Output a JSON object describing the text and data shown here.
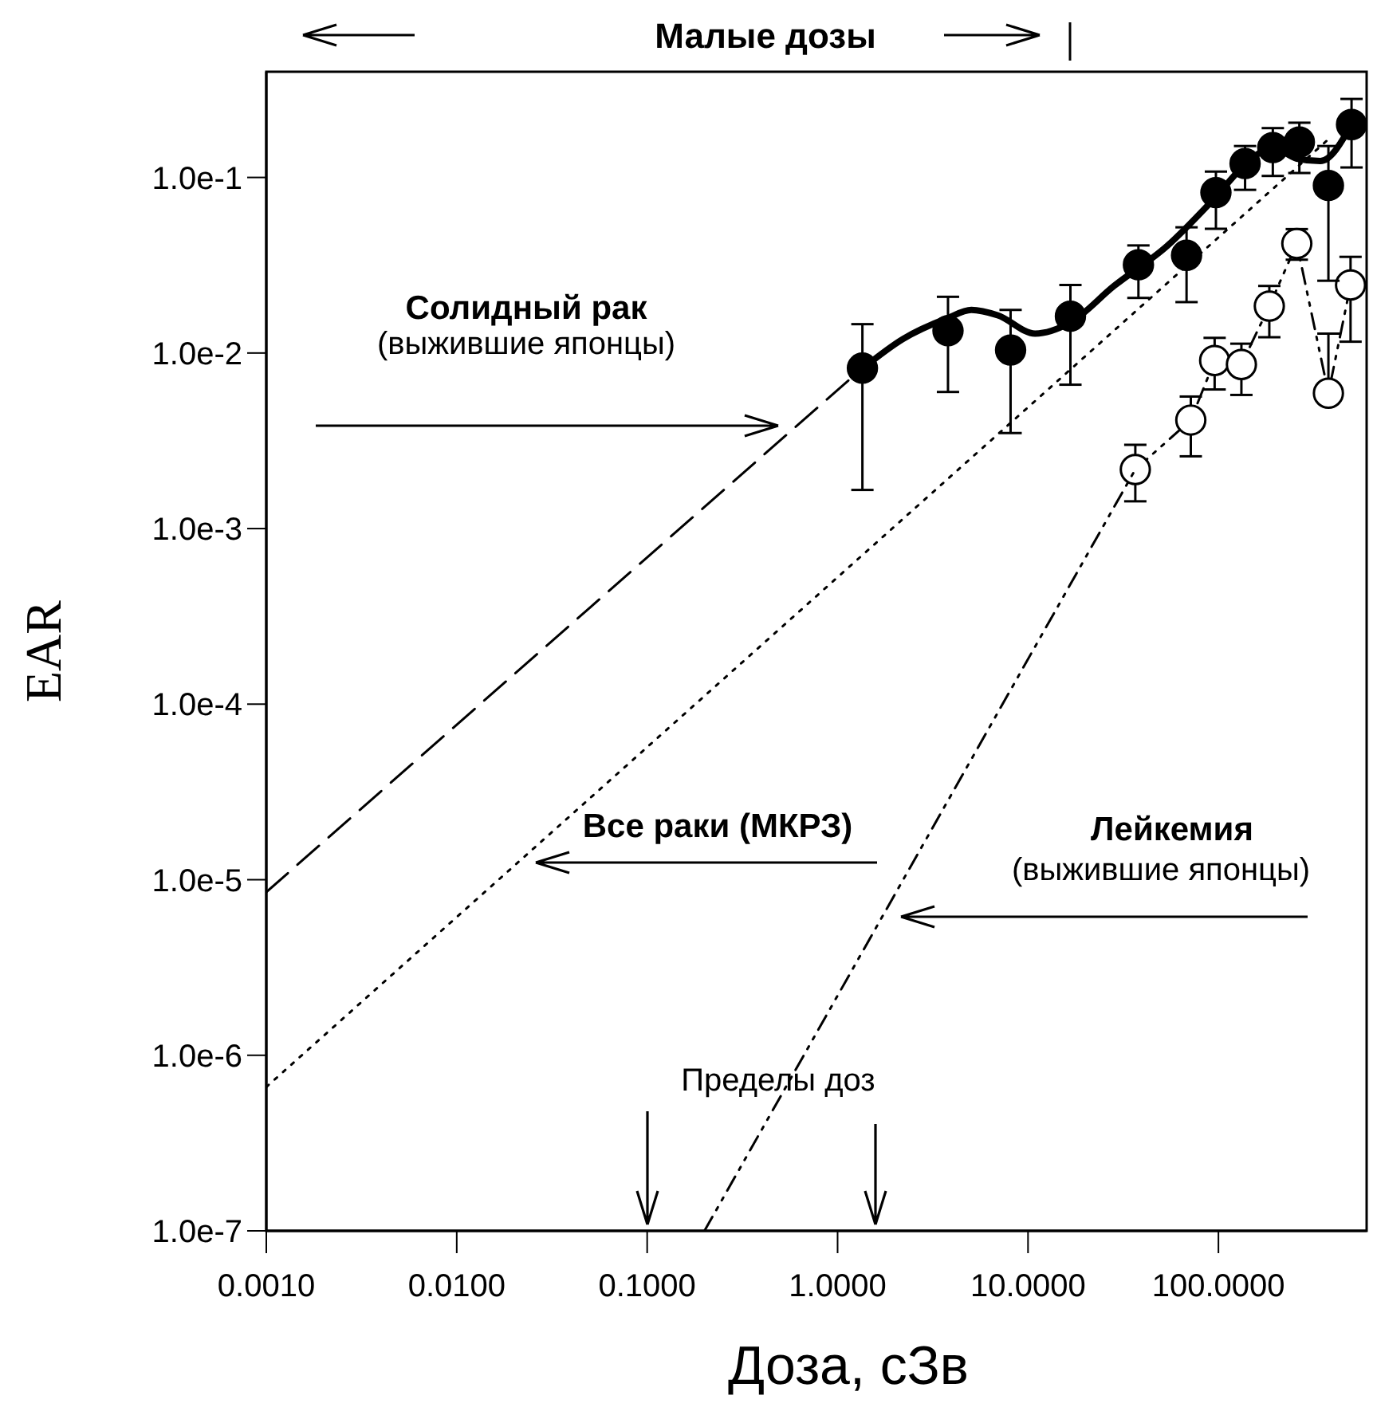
{
  "chart_data": {
    "type": "scatter",
    "xlabel": "Доза, сЗв",
    "ylabel": "EAR",
    "log": "xy",
    "grid": false,
    "xlim": [
      0.001,
      600
    ],
    "ylim": [
      1e-07,
      0.4
    ],
    "xticks": [
      {
        "value": 0.001,
        "label": "0.0010"
      },
      {
        "value": 0.01,
        "label": "0.0100"
      },
      {
        "value": 0.1,
        "label": "0.1000"
      },
      {
        "value": 1,
        "label": "1.0000"
      },
      {
        "value": 10,
        "label": "10.0000"
      },
      {
        "value": 100,
        "label": "100.0000"
      }
    ],
    "yticks": [
      {
        "value": 1e-07,
        "label": "1.0e-7"
      },
      {
        "value": 1e-06,
        "label": "1.0e-6"
      },
      {
        "value": 1e-05,
        "label": "1.0e-5"
      },
      {
        "value": 0.0001,
        "label": "1.0e-4"
      },
      {
        "value": 0.001,
        "label": "1.0e-3"
      },
      {
        "value": 0.01,
        "label": "1.0e-2"
      },
      {
        "value": 0.1,
        "label": "1.0e-1"
      }
    ],
    "annotations": [
      "Малые дозы",
      "Солидный рак",
      "(выжившие японцы)",
      "Все раки (МКРЗ)",
      "Лейкемия",
      "(выжившие японцы)",
      "Пределы доз"
    ],
    "series": [
      {
        "type": "scatter",
        "color": "#000000",
        "marker": "circle",
        "x": [
          1.35,
          3.8,
          8.1,
          16.7,
          38,
          68,
          97,
          138,
          193,
          266,
          378,
          500
        ],
        "values": [
          0.0082,
          0.0134,
          0.0104,
          0.0162,
          0.0318,
          0.036,
          0.082,
          0.12,
          0.148,
          0.159,
          0.09,
          0.2
        ],
        "errors": [
          [
            0.00166,
            0.0146
          ],
          [
            0.006,
            0.0209
          ],
          [
            0.0035,
            0.0176
          ],
          [
            0.0066,
            0.0244
          ],
          [
            0.0206,
            0.041
          ],
          [
            0.0195,
            0.052
          ],
          [
            0.051,
            0.108
          ],
          [
            0.085,
            0.151
          ],
          [
            0.102,
            0.191
          ],
          [
            0.106,
            0.205
          ],
          [
            0.0258,
            0.151
          ],
          [
            0.114,
            0.28
          ]
        ]
      },
      {
        "type": "line",
        "color": "#000000",
        "line_style": "solid",
        "x": [
          1.36,
          2.2,
          3.78,
          5.04,
          6.93,
          10.9,
          16.5,
          28.3,
          53.8,
          95.5,
          140,
          193,
          258,
          343,
          500
        ],
        "values": [
          0.0082,
          0.012,
          0.0158,
          0.0176,
          0.0164,
          0.0129,
          0.0148,
          0.0241,
          0.0407,
          0.0762,
          0.12,
          0.148,
          0.128,
          0.124,
          0.2
        ]
      },
      {
        "type": "line",
        "color": "#000000",
        "line_style": "dashed",
        "x": [
          0.001,
          1.35
        ],
        "values": [
          8.5e-06,
          0.0082
        ]
      },
      {
        "type": "line",
        "color": "#000000",
        "line_style": "dotted",
        "x": [
          0.001,
          390
        ],
        "values": [
          6.6e-07,
          0.17
        ]
      },
      {
        "type": "line",
        "color": "#000000",
        "line_style": "dashdot",
        "marker": "circle",
        "x": [
          36.6,
          71.6,
          95.5,
          132,
          185,
          258,
          378,
          494
        ],
        "values": [
          0.00217,
          0.00415,
          0.00906,
          0.0086,
          0.0185,
          0.042,
          0.0059,
          0.0244
        ],
        "errors": [
          [
            0.00143,
            0.003
          ],
          [
            0.00258,
            0.00565
          ],
          [
            0.0062,
            0.0122
          ],
          [
            0.00577,
            0.0113
          ],
          [
            0.0123,
            0.0241
          ],
          [
            0.034,
            0.0508
          ],
          [
            0.0059,
            0.0129
          ],
          [
            0.0116,
            0.0353
          ]
        ]
      },
      {
        "type": "line",
        "color": "#000000",
        "line_style": "dashdot",
        "x": [
          0.2,
          36.6
        ],
        "values": [
          1e-07,
          0.00217
        ]
      }
    ]
  }
}
